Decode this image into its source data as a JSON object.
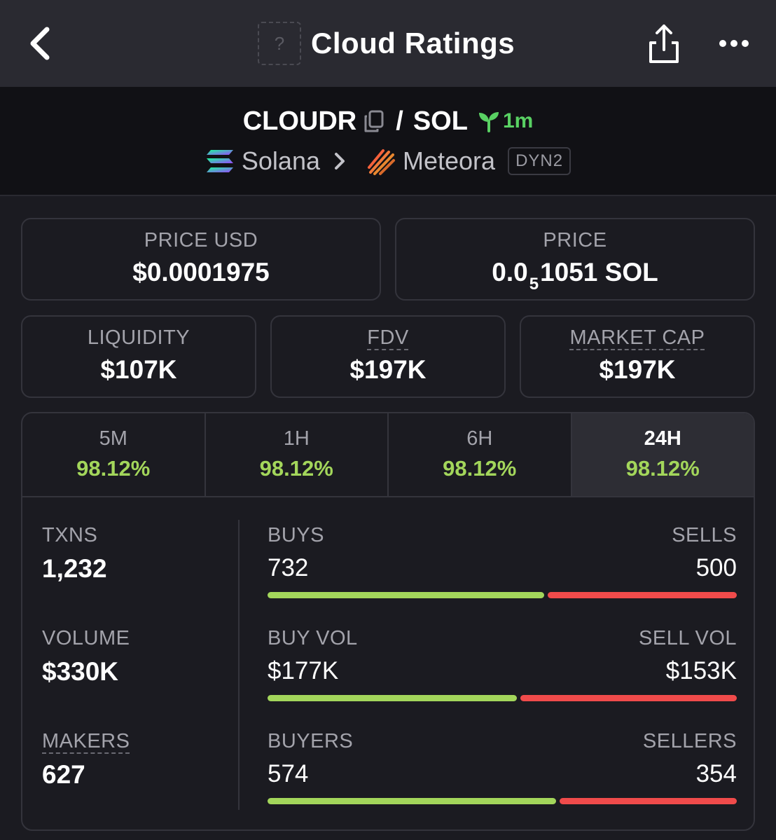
{
  "nav": {
    "title": "Cloud Ratings",
    "token_placeholder": "?"
  },
  "pair": {
    "base": "CLOUDR",
    "separator": "/",
    "quote": "SOL",
    "age": "1m",
    "chain": "Solana",
    "dex": "Meteora",
    "pool_type": "DYN2"
  },
  "stats": {
    "price_usd": {
      "label": "PRICE USD",
      "value": "$0.0001975"
    },
    "price": {
      "label": "PRICE",
      "prefix": "0.0",
      "zeros": "5",
      "suffix": "1051 SOL"
    },
    "liquidity": {
      "label": "LIQUIDITY",
      "value": "$107K"
    },
    "fdv": {
      "label": "FDV",
      "value": "$197K"
    },
    "market_cap": {
      "label": "MARKET CAP",
      "value": "$197K"
    }
  },
  "tabs": [
    {
      "label": "5M",
      "value": "98.12%"
    },
    {
      "label": "1H",
      "value": "98.12%"
    },
    {
      "label": "6H",
      "value": "98.12%"
    },
    {
      "label": "24H",
      "value": "98.12%"
    }
  ],
  "active_tab": "24H",
  "activity": {
    "txns": {
      "label": "TXNS",
      "value": "1,232"
    },
    "volume": {
      "label": "VOLUME",
      "value": "$330K"
    },
    "makers": {
      "label": "MAKERS",
      "value": "627"
    },
    "buys": {
      "label": "BUYS",
      "value": "732"
    },
    "sells": {
      "label": "SELLS",
      "value": "500"
    },
    "buy_vol": {
      "label": "BUY VOL",
      "value": "$177K"
    },
    "sell_vol": {
      "label": "SELL VOL",
      "value": "$153K"
    },
    "buyers": {
      "label": "BUYERS",
      "value": "574"
    },
    "sellers": {
      "label": "SELLERS",
      "value": "354"
    },
    "ratios": {
      "txns_buy_fraction": 0.594,
      "volume_buy_fraction": 0.536,
      "makers_buy_fraction": 0.619
    }
  },
  "colors": {
    "positive": "#a3d65b",
    "negative": "#f04b4b",
    "age_green": "#59d163"
  }
}
